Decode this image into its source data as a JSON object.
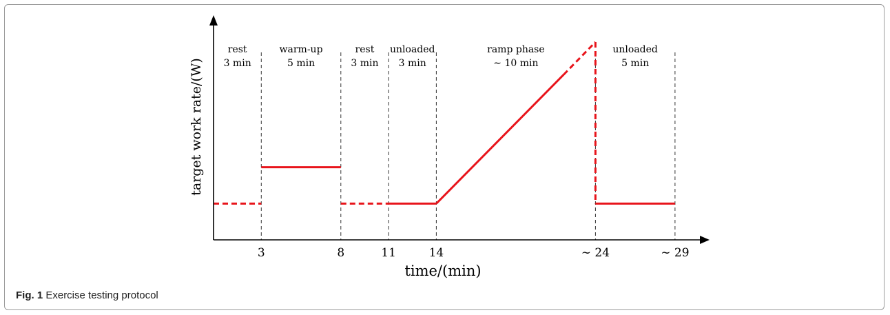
{
  "caption": {
    "label": "Fig. 1",
    "text": "Exercise testing protocol"
  },
  "chart_data": {
    "type": "line",
    "xlabel": "time/(min)",
    "ylabel": "target work rate/(W)",
    "x_ticks": [
      {
        "value": 3,
        "label": "3"
      },
      {
        "value": 8,
        "label": "8"
      },
      {
        "value": 11,
        "label": "11"
      },
      {
        "value": 14,
        "label": "14"
      },
      {
        "value": 24,
        "label": "∼ 24"
      },
      {
        "value": 29,
        "label": "∼ 29"
      }
    ],
    "xlim": [
      0,
      31
    ],
    "ylim": [
      0,
      12
    ],
    "phases": [
      {
        "start": 0,
        "end": 3,
        "name": "rest",
        "duration": "3 min"
      },
      {
        "start": 3,
        "end": 8,
        "name": "warm-up",
        "duration": "5 min"
      },
      {
        "start": 8,
        "end": 11,
        "name": "rest",
        "duration": "3 min"
      },
      {
        "start": 11,
        "end": 14,
        "name": "unloaded",
        "duration": "3 min"
      },
      {
        "start": 14,
        "end": 24,
        "name": "ramp phase",
        "duration": "∼ 10 min"
      },
      {
        "start": 24,
        "end": 29,
        "name": "unloaded",
        "duration": "5 min"
      }
    ],
    "segments": [
      {
        "x": [
          0,
          3
        ],
        "y": [
          2,
          2
        ],
        "style": "dashed"
      },
      {
        "x": [
          3,
          8
        ],
        "y": [
          4,
          4
        ],
        "style": "solid"
      },
      {
        "x": [
          8,
          11
        ],
        "y": [
          2,
          2
        ],
        "style": "dashed"
      },
      {
        "x": [
          11,
          14
        ],
        "y": [
          2,
          2
        ],
        "style": "solid"
      },
      {
        "x": [
          14,
          22
        ],
        "y": [
          2,
          9.1
        ],
        "style": "solid"
      },
      {
        "x": [
          22,
          24
        ],
        "y": [
          9.1,
          10.9
        ],
        "style": "dashed"
      },
      {
        "x": [
          24,
          24
        ],
        "y": [
          10.9,
          2
        ],
        "style": "dashed"
      },
      {
        "x": [
          24,
          29
        ],
        "y": [
          2,
          2
        ],
        "style": "solid"
      }
    ],
    "line_color": "#e8141b",
    "grid": false
  }
}
